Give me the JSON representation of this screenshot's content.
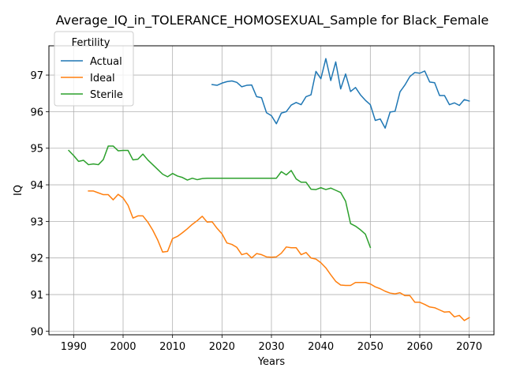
{
  "chart_data": {
    "type": "line",
    "title": "Average_IQ_in_TOLERANCE_HOMOSEXUAL_Sample for Black_Female",
    "xlabel": "Years",
    "ylabel": "IQ",
    "xlim": [
      1985,
      2075
    ],
    "ylim": [
      89.9,
      97.8
    ],
    "xticks": [
      1990,
      2000,
      2010,
      2020,
      2030,
      2040,
      2050,
      2060,
      2070
    ],
    "yticks": [
      90,
      91,
      92,
      93,
      94,
      95,
      96,
      97
    ],
    "grid": true,
    "legend": {
      "title": "Fertility",
      "position": "upper-left"
    },
    "series": [
      {
        "name": "Actual",
        "color": "#1f77b4",
        "x": [
          2018,
          2019,
          2020,
          2021,
          2022,
          2023,
          2024,
          2025,
          2026,
          2027,
          2028,
          2029,
          2030,
          2031,
          2032,
          2033,
          2034,
          2035,
          2036,
          2037,
          2038,
          2039,
          2040,
          2041,
          2042,
          2043,
          2044,
          2045,
          2046,
          2047,
          2048,
          2049,
          2050,
          2051,
          2052,
          2053,
          2054,
          2055,
          2056,
          2057,
          2058,
          2059,
          2060,
          2061,
          2062,
          2063,
          2064,
          2065,
          2066,
          2067,
          2068,
          2069,
          2070
        ],
        "y": [
          96.74,
          96.72,
          96.78,
          96.82,
          96.84,
          96.8,
          96.68,
          96.72,
          96.73,
          96.41,
          96.38,
          95.97,
          95.89,
          95.67,
          95.96,
          96.0,
          96.18,
          96.25,
          96.19,
          96.41,
          96.46,
          97.1,
          96.9,
          97.45,
          96.85,
          97.36,
          96.62,
          97.03,
          96.55,
          96.66,
          96.46,
          96.31,
          96.19,
          95.76,
          95.8,
          95.55,
          95.99,
          96.01,
          96.54,
          96.73,
          96.96,
          97.07,
          97.05,
          97.11,
          96.81,
          96.79,
          96.44,
          96.44,
          96.19,
          96.24,
          96.17,
          96.33,
          96.29
        ]
      },
      {
        "name": "Ideal",
        "color": "#ff7f0e",
        "x": [
          1993,
          1994,
          1995,
          1996,
          1997,
          1998,
          1999,
          2000,
          2001,
          2002,
          2003,
          2004,
          2005,
          2006,
          2007,
          2008,
          2009,
          2010,
          2011,
          2012,
          2013,
          2014,
          2015,
          2016,
          2017,
          2018,
          2019,
          2020,
          2021,
          2022,
          2023,
          2024,
          2025,
          2026,
          2027,
          2028,
          2029,
          2030,
          2031,
          2032,
          2033,
          2034,
          2035,
          2036,
          2037,
          2038,
          2039,
          2040,
          2041,
          2042,
          2043,
          2044,
          2045,
          2046,
          2047,
          2048,
          2049,
          2050,
          2051,
          2052,
          2053,
          2054,
          2055,
          2056,
          2057,
          2058,
          2059,
          2060,
          2061,
          2062,
          2063,
          2064,
          2065,
          2066,
          2067,
          2068,
          2069,
          2070
        ],
        "y": [
          93.83,
          93.83,
          93.78,
          93.73,
          93.73,
          93.59,
          93.74,
          93.64,
          93.44,
          93.09,
          93.15,
          93.15,
          92.98,
          92.76,
          92.49,
          92.16,
          92.18,
          92.53,
          92.59,
          92.69,
          92.8,
          92.92,
          93.02,
          93.14,
          92.98,
          92.99,
          92.81,
          92.66,
          92.41,
          92.37,
          92.29,
          92.09,
          92.13,
          92.0,
          92.12,
          92.09,
          92.03,
          92.02,
          92.03,
          92.13,
          92.3,
          92.28,
          92.28,
          92.09,
          92.15,
          92.0,
          91.97,
          91.87,
          91.73,
          91.54,
          91.36,
          91.26,
          91.25,
          91.25,
          91.33,
          91.33,
          91.33,
          91.29,
          91.21,
          91.16,
          91.09,
          91.04,
          91.02,
          91.05,
          90.97,
          90.97,
          90.79,
          90.79,
          90.73,
          90.66,
          90.64,
          90.58,
          90.52,
          90.53,
          90.39,
          90.43,
          90.29,
          90.37
        ]
      },
      {
        "name": "Sterile",
        "color": "#2ca02c",
        "x": [
          1989,
          1990,
          1991,
          1992,
          1993,
          1994,
          1995,
          1996,
          1997,
          1998,
          1999,
          2000,
          2001,
          2002,
          2003,
          2004,
          2005,
          2006,
          2007,
          2008,
          2009,
          2010,
          2011,
          2012,
          2013,
          2014,
          2015,
          2016,
          2017,
          2018,
          2019,
          2020,
          2021,
          2022,
          2023,
          2024,
          2025,
          2026,
          2027,
          2028,
          2029,
          2030,
          2031,
          2032,
          2033,
          2034,
          2035,
          2036,
          2037,
          2038,
          2039,
          2040,
          2041,
          2042,
          2043,
          2044,
          2045,
          2046,
          2047,
          2048,
          2049,
          2050
        ],
        "y": [
          94.94,
          94.8,
          94.64,
          94.67,
          94.55,
          94.57,
          94.55,
          94.69,
          95.06,
          95.06,
          94.93,
          94.94,
          94.94,
          94.68,
          94.7,
          94.84,
          94.68,
          94.55,
          94.42,
          94.29,
          94.22,
          94.31,
          94.24,
          94.2,
          94.13,
          94.18,
          94.14,
          94.17,
          94.18,
          94.18,
          94.18,
          94.18,
          94.18,
          94.18,
          94.18,
          94.18,
          94.18,
          94.18,
          94.18,
          94.18,
          94.18,
          94.18,
          94.18,
          94.36,
          94.27,
          94.39,
          94.16,
          94.07,
          94.07,
          93.88,
          93.87,
          93.92,
          93.87,
          93.91,
          93.85,
          93.79,
          93.55,
          92.94,
          92.87,
          92.77,
          92.65,
          92.29
        ]
      }
    ]
  }
}
